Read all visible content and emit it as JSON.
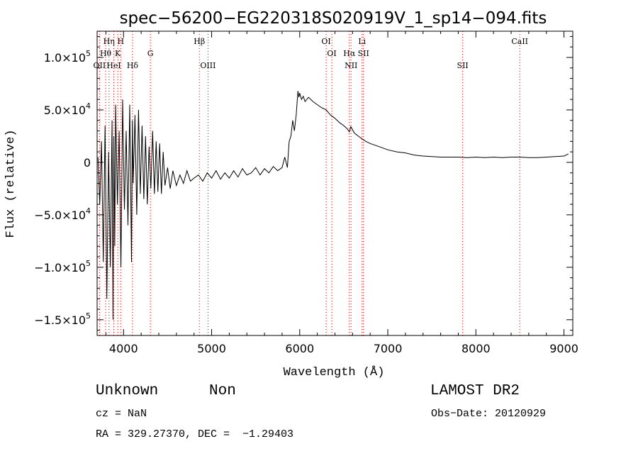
{
  "chart_data": {
    "type": "line",
    "title": "spec−56200−EG220318S020919V_1_sp14−094.fits",
    "xlabel": "Wavelength (Å)",
    "ylabel": "Flux (relative)",
    "xlim": [
      3700,
      9100
    ],
    "ylim": [
      -165000,
      125000
    ],
    "grid": false,
    "x_ticks": [
      {
        "value": 4000,
        "label": "4000"
      },
      {
        "value": 5000,
        "label": "5000"
      },
      {
        "value": 6000,
        "label": "6000"
      },
      {
        "value": 7000,
        "label": "7000"
      },
      {
        "value": 8000,
        "label": "8000"
      },
      {
        "value": 9000,
        "label": "9000"
      }
    ],
    "y_ticks": [
      {
        "value": 100000,
        "mant": "1.0×10",
        "exp": "5"
      },
      {
        "value": 50000,
        "mant": "5.0×10",
        "exp": "4"
      },
      {
        "value": 0,
        "mant": "0",
        "exp": ""
      },
      {
        "value": -50000,
        "mant": "−5.0×10",
        "exp": "4"
      },
      {
        "value": -100000,
        "mant": "−1.0×10",
        "exp": "5"
      },
      {
        "value": -150000,
        "mant": "−1.5×10",
        "exp": "5"
      }
    ],
    "spectrum": {
      "x": [
        3710,
        3730,
        3750,
        3770,
        3790,
        3810,
        3830,
        3850,
        3870,
        3880,
        3890,
        3900,
        3910,
        3930,
        3950,
        3970,
        3990,
        4010,
        4030,
        4050,
        4070,
        4090,
        4100,
        4110,
        4130,
        4150,
        4170,
        4190,
        4210,
        4230,
        4250,
        4270,
        4290,
        4310,
        4330,
        4350,
        4370,
        4390,
        4410,
        4430,
        4450,
        4470,
        4500,
        4530,
        4560,
        4600,
        4640,
        4680,
        4720,
        4760,
        4800,
        4850,
        4900,
        4950,
        5000,
        5050,
        5100,
        5150,
        5200,
        5250,
        5300,
        5350,
        5400,
        5450,
        5500,
        5550,
        5600,
        5650,
        5700,
        5750,
        5800,
        5830,
        5860,
        5880,
        5900,
        5920,
        5940,
        5960,
        5980,
        5990,
        6000,
        6020,
        6040,
        6060,
        6100,
        6150,
        6200,
        6250,
        6300,
        6350,
        6400,
        6450,
        6500,
        6540,
        6563,
        6580,
        6620,
        6680,
        6750,
        6800,
        6900,
        7000,
        7100,
        7200,
        7300,
        7400,
        7500,
        7600,
        7700,
        7800,
        7900,
        8000,
        8100,
        8200,
        8300,
        8400,
        8500,
        8600,
        8700,
        8800,
        8900,
        9000,
        9050
      ],
      "y": [
        5000,
        -40000,
        20000,
        -95000,
        35000,
        -130000,
        10000,
        -100000,
        40000,
        -150000,
        25000,
        -80000,
        55000,
        -40000,
        30000,
        -100000,
        60000,
        -45000,
        30000,
        -60000,
        55000,
        -95000,
        40000,
        -20000,
        45000,
        -50000,
        50000,
        -30000,
        35000,
        -35000,
        25000,
        -40000,
        15000,
        -25000,
        30000,
        -30000,
        20000,
        -28000,
        18000,
        -30000,
        10000,
        -22000,
        -5000,
        -25000,
        -8000,
        -22000,
        -12000,
        -20000,
        -8000,
        -18000,
        -15000,
        -12000,
        -18000,
        -10000,
        -15000,
        -8000,
        -16000,
        -10000,
        -15000,
        -8000,
        -14000,
        -6000,
        -12000,
        -10000,
        -5000,
        -12000,
        -6000,
        -10000,
        -4000,
        -8000,
        -5000,
        5000,
        -5000,
        20000,
        25000,
        40000,
        30000,
        45000,
        68000,
        62000,
        66000,
        60000,
        63000,
        58000,
        62000,
        58000,
        55000,
        52000,
        50000,
        45000,
        42000,
        38000,
        35000,
        32000,
        29000,
        34000,
        28000,
        24000,
        20000,
        18000,
        15000,
        12000,
        10000,
        9000,
        7000,
        6000,
        5500,
        5000,
        5000,
        5000,
        4500,
        5000,
        4500,
        5000,
        4500,
        5000,
        5000,
        4500,
        4500,
        5000,
        5500,
        6000,
        8000
      ]
    },
    "lines": [
      {
        "name": "OII",
        "wavelength": 3727,
        "row": 3
      },
      {
        "name": "Hη",
        "wavelength": 3835,
        "row": 1
      },
      {
        "name": "Hθ",
        "wavelength": 3797,
        "row": 2
      },
      {
        "name": "H",
        "wavelength": 3968,
        "row": 1
      },
      {
        "name": "K",
        "wavelength": 3934,
        "row": 2
      },
      {
        "name": "HeI",
        "wavelength": 3889,
        "row": 3
      },
      {
        "name": "Hδ",
        "wavelength": 4102,
        "row": 3
      },
      {
        "name": "G",
        "wavelength": 4305,
        "row": 2
      },
      {
        "name": "Hβ",
        "wavelength": 4861,
        "row": 1
      },
      {
        "name": "OIII",
        "wavelength": 4959,
        "row": 3
      },
      {
        "name": "OI",
        "wavelength": 6300,
        "row": 1
      },
      {
        "name": "OI",
        "wavelength": 6364,
        "row": 2
      },
      {
        "name": "Hα",
        "wavelength": 6563,
        "row": 2
      },
      {
        "name": "NII",
        "wavelength": 6583,
        "row": 3
      },
      {
        "name": "Li",
        "wavelength": 6708,
        "row": 1
      },
      {
        "name": "SII",
        "wavelength": 6724,
        "row": 2
      },
      {
        "name": "SII",
        "wavelength": 7850,
        "row": 3
      },
      {
        "name": "CaII",
        "wavelength": 8498,
        "row": 1
      }
    ],
    "colors": {
      "spectrum": "#000000",
      "lines": "#cc0000",
      "axes": "#000000"
    }
  },
  "info": {
    "class": "Unknown",
    "subclass": "Non",
    "survey": "LAMOST DR2",
    "cz": "cz = NaN",
    "obs_date": "Obs−Date: 20120929",
    "radec": "RA = 329.27370, DEC =  −1.29403"
  }
}
